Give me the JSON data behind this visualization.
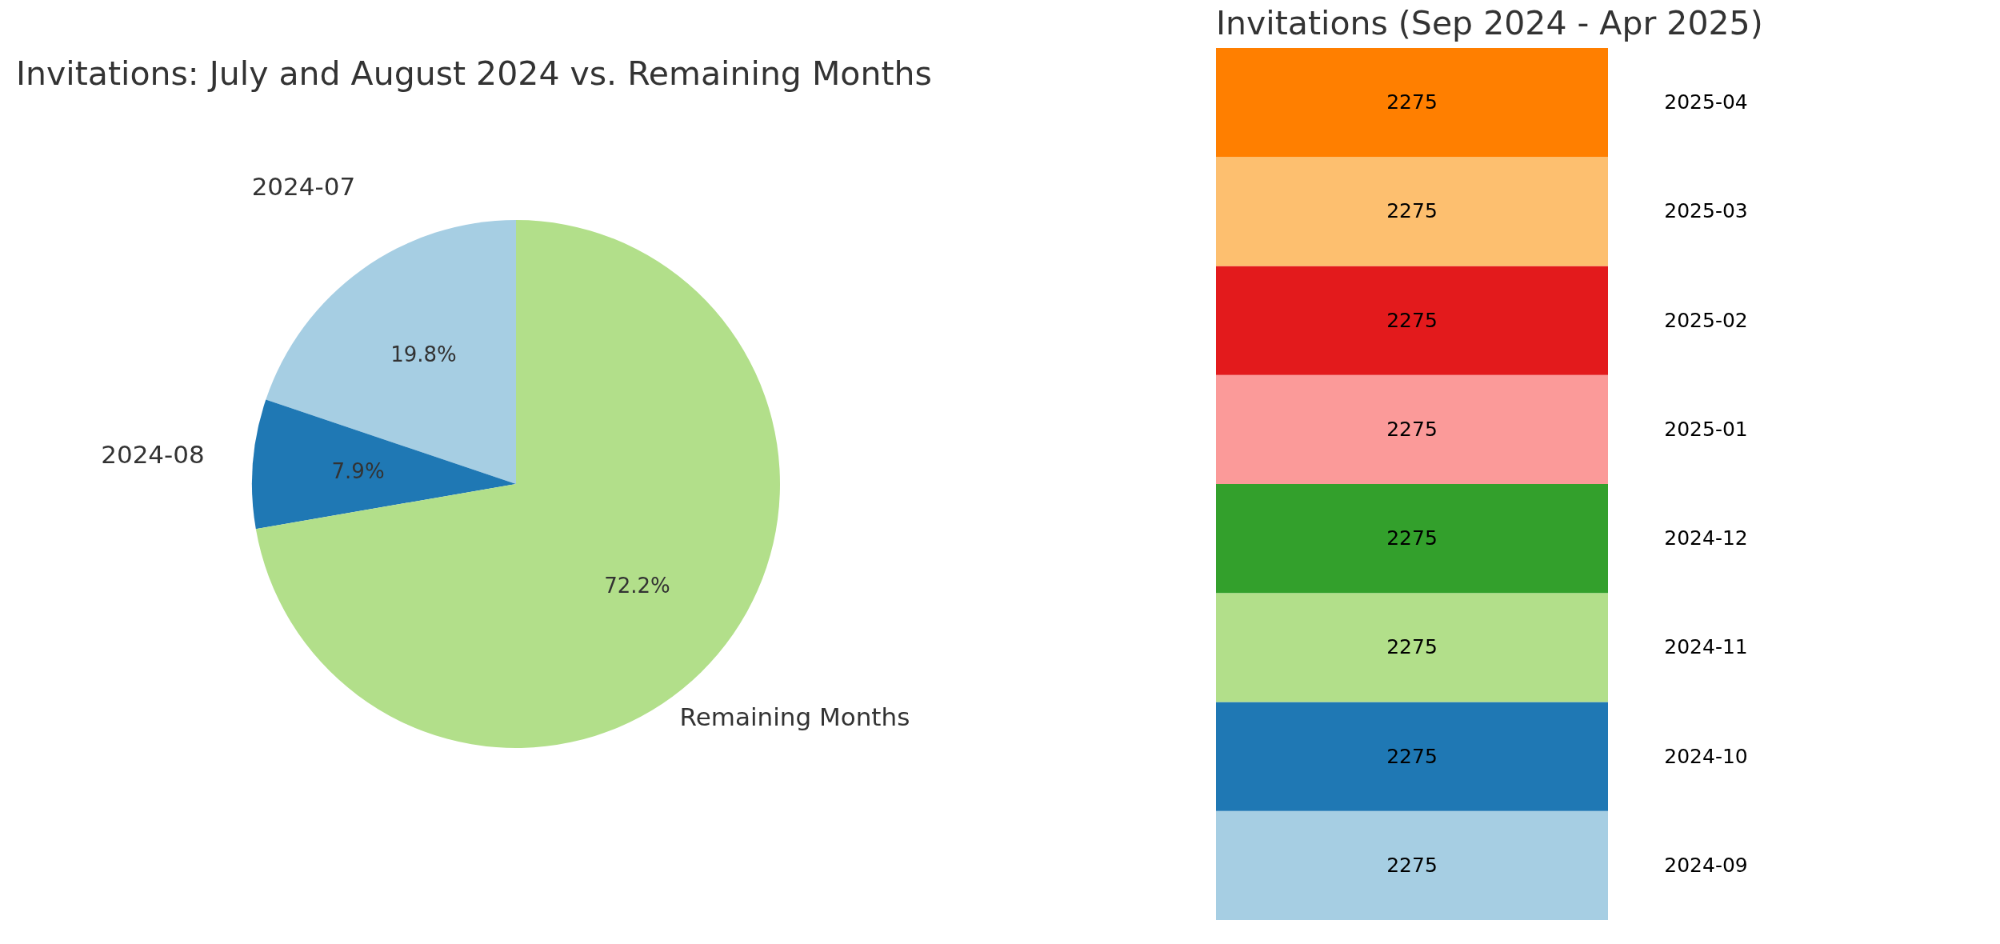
{
  "chart_data": [
    {
      "type": "pie",
      "title": "Invitations: July and August 2024 vs. Remaining Months",
      "categories": [
        "2024-07",
        "2024-08",
        "Remaining Months"
      ],
      "values": [
        19.8,
        7.9,
        72.2
      ],
      "value_labels": [
        "19.8%",
        "7.9%",
        "72.2%"
      ],
      "colors": [
        "#a6cee3",
        "#1f78b4",
        "#b2df8a"
      ],
      "legend": false
    },
    {
      "type": "bar",
      "title": "Invitations (Sep 2024 - Apr 2025)",
      "stacked": true,
      "data_labels": true,
      "categories": [
        null
      ],
      "series": [
        {
          "name": "2024-09",
          "color": "#a6cee3",
          "values": [
            2275
          ]
        },
        {
          "name": "2024-10",
          "color": "#1f78b4",
          "values": [
            2275
          ]
        },
        {
          "name": "2024-11",
          "color": "#b2df8a",
          "values": [
            2275
          ]
        },
        {
          "name": "2024-12",
          "color": "#33a02c",
          "values": [
            2275
          ]
        },
        {
          "name": "2025-01",
          "color": "#fb9a99",
          "values": [
            2275
          ]
        },
        {
          "name": "2025-02",
          "color": "#e31a1c",
          "values": [
            2275
          ]
        },
        {
          "name": "2025-03",
          "color": "#fdbf6f",
          "values": [
            2275
          ]
        },
        {
          "name": "2025-04",
          "color": "#ff7f00",
          "values": [
            2275
          ]
        }
      ]
    }
  ]
}
